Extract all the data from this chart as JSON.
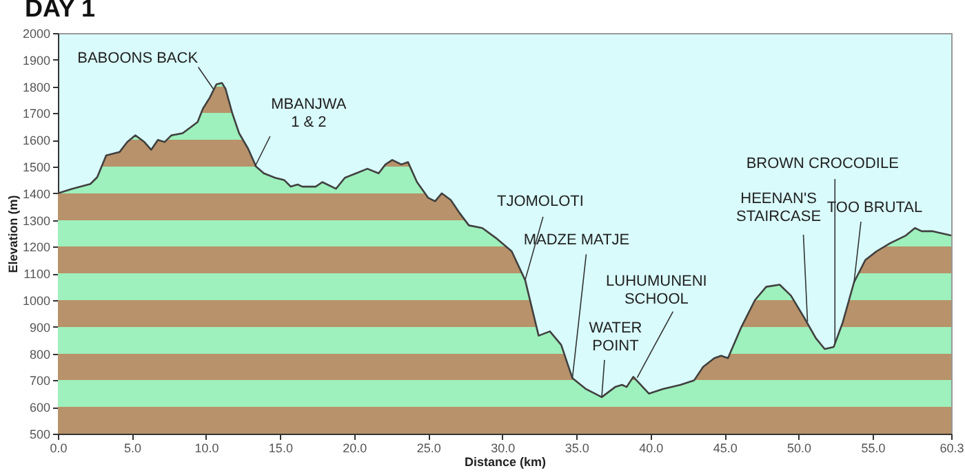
{
  "chart_data": {
    "type": "area",
    "title": "DAY 1",
    "xlabel": "Distance  (km)",
    "ylabel": "Elevation (m)",
    "xlim": [
      0,
      60.3
    ],
    "ylim": [
      500,
      2000
    ],
    "xticks": [
      {
        "value": 0,
        "label": "0.0"
      },
      {
        "value": 5,
        "label": "5.0"
      },
      {
        "value": 10,
        "label": "10.0"
      },
      {
        "value": 15,
        "label": "15.0"
      },
      {
        "value": 20,
        "label": "20.0"
      },
      {
        "value": 25,
        "label": "25.0"
      },
      {
        "value": 30,
        "label": "30.0"
      },
      {
        "value": 35,
        "label": "35.0"
      },
      {
        "value": 40,
        "label": "40.0"
      },
      {
        "value": 45,
        "label": "45.0"
      },
      {
        "value": 50,
        "label": "50.0"
      },
      {
        "value": 55,
        "label": "55.0"
      },
      {
        "value": 60.3,
        "label": "60.3"
      }
    ],
    "yticks": [
      500,
      600,
      700,
      800,
      900,
      1000,
      1100,
      1200,
      1300,
      1400,
      1500,
      1600,
      1700,
      1800,
      1900,
      2000
    ],
    "series": [
      {
        "color": "#404040",
        "x": [
          0,
          0.97,
          2.19,
          2.65,
          3.26,
          4.17,
          4.68,
          5.23,
          5.84,
          6.3,
          6.75,
          7.2,
          7.66,
          8.42,
          9.03,
          9.43,
          9.79,
          10.25,
          10.7,
          11.07,
          11.31,
          11.77,
          12.23,
          12.84,
          13.38,
          13.9,
          14.66,
          15.27,
          15.72,
          16.18,
          16.5,
          17.4,
          17.85,
          18.77,
          19.37,
          20.13,
          20.89,
          21.65,
          22.11,
          22.57,
          23.18,
          23.63,
          24.24,
          25.0,
          25.46,
          25.91,
          26.52,
          27.13,
          27.74,
          28.65,
          29.56,
          30.63,
          31.54,
          32.45,
          33.21,
          33.97,
          34.73,
          35.65,
          36.71,
          37.62,
          38.08,
          38.39,
          38.84,
          39.9,
          40.81,
          42.03,
          42.95,
          43.55,
          44.31,
          44.77,
          45.23,
          46.14,
          47.05,
          47.81,
          48.72,
          49.48,
          50.39,
          51.16,
          51.76,
          52.37,
          52.98,
          53.74,
          54.5,
          55.26,
          56.17,
          57.24,
          57.85,
          58.3,
          59.06,
          60.3
        ],
        "values": [
          1400,
          1417,
          1435,
          1460,
          1542,
          1555,
          1592,
          1617,
          1592,
          1563,
          1600,
          1592,
          1617,
          1625,
          1650,
          1667,
          1717,
          1758,
          1808,
          1813,
          1792,
          1700,
          1625,
          1567,
          1500,
          1475,
          1458,
          1450,
          1425,
          1433,
          1425,
          1425,
          1442,
          1417,
          1458,
          1475,
          1492,
          1475,
          1508,
          1525,
          1508,
          1517,
          1442,
          1383,
          1370,
          1400,
          1375,
          1325,
          1280,
          1270,
          1233,
          1183,
          1075,
          867,
          883,
          833,
          708,
          667,
          637,
          675,
          683,
          675,
          713,
          650,
          667,
          683,
          700,
          750,
          783,
          792,
          783,
          900,
          1000,
          1050,
          1058,
          1017,
          933,
          858,
          817,
          825,
          917,
          1067,
          1150,
          1183,
          1213,
          1242,
          1270,
          1258,
          1258,
          1242
        ]
      }
    ],
    "annotations": [
      {
        "text": "BABOONS BACK",
        "x": 10.5,
        "y": 1790
      },
      {
        "text": "MBANJWA\n1 & 2",
        "x": 13.3,
        "y": 1500
      },
      {
        "text": "TJOMOLOTI",
        "x": 31.54,
        "y": 1075
      },
      {
        "text": "MADZE MATJE",
        "x": 34.73,
        "y": 708
      },
      {
        "text": "WATER\nPOINT",
        "x": 36.71,
        "y": 637
      },
      {
        "text": "LUHUMUNENI\nSCHOOL",
        "x": 39.1,
        "y": 710
      },
      {
        "text": "HEENAN'S\nSTAIRCASE",
        "x": 50.6,
        "y": 920
      },
      {
        "text": "BROWN CROCODILE",
        "x": 52.45,
        "y": 840
      },
      {
        "text": "TOO BRUTAL",
        "x": 53.74,
        "y": 1067
      }
    ]
  }
}
